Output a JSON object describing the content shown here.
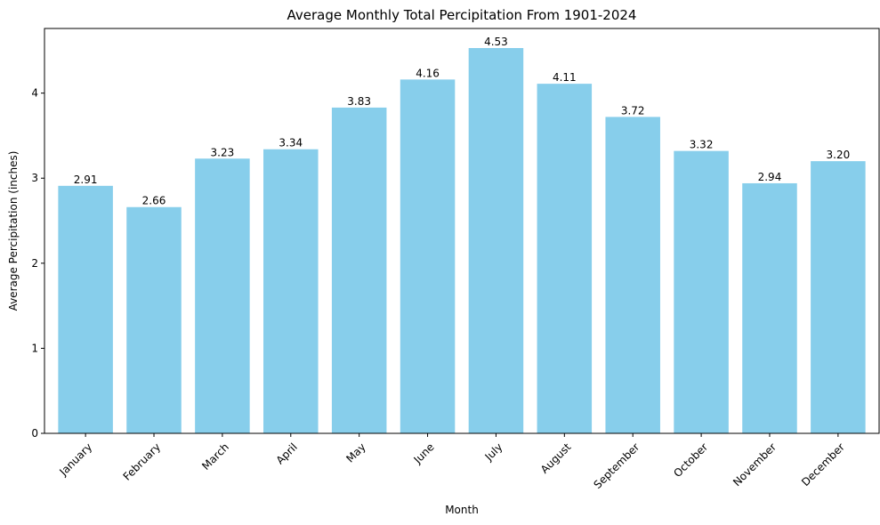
{
  "chart_data": {
    "type": "bar",
    "title": "Average Monthly Total Percipitation From 1901-2024",
    "xlabel": "Month",
    "ylabel": "Average Percipitation (inches)",
    "categories": [
      "January",
      "February",
      "March",
      "April",
      "May",
      "June",
      "July",
      "August",
      "September",
      "October",
      "November",
      "December"
    ],
    "values": [
      2.91,
      2.66,
      3.23,
      3.34,
      3.83,
      4.16,
      4.53,
      4.11,
      3.72,
      3.32,
      2.94,
      3.2
    ],
    "value_labels": [
      "2.91",
      "2.66",
      "3.23",
      "3.34",
      "3.83",
      "4.16",
      "4.53",
      "4.11",
      "3.72",
      "3.32",
      "2.94",
      "3.20"
    ],
    "ylim": [
      0,
      4.76
    ],
    "yticks": [
      0,
      1,
      2,
      3,
      4
    ],
    "ytick_labels": [
      "0",
      "1",
      "2",
      "3",
      "4"
    ],
    "grid": false,
    "legend": "none",
    "bar_color": "#87CEEB",
    "axis_color": "#000000"
  }
}
